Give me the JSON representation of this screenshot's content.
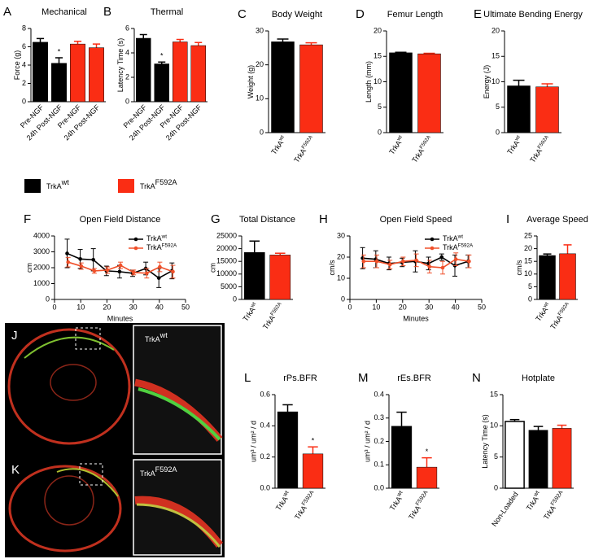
{
  "legend": [
    {
      "label": "TrkA",
      "superscript": "wt",
      "color": "#000000"
    },
    {
      "label": "TrkA",
      "superscript": "F592A",
      "color": "#fa2d14"
    }
  ],
  "images": [
    {
      "panel": "J",
      "label": "TrkA",
      "superscript": "wt"
    },
    {
      "panel": "K",
      "label": "TrkA",
      "superscript": "F592A"
    }
  ],
  "chart_data": [
    {
      "type": "bar",
      "panel": "A",
      "title": "Mechanical",
      "ylabel": "Force (g)",
      "categories": [
        "Pre-NGF",
        "24h Post-NGF",
        "Pre-NGF",
        "24h Post-NGF"
      ],
      "values": [
        6.5,
        4.2,
        6.3,
        5.9
      ],
      "errors": [
        0.4,
        0.6,
        0.3,
        0.4
      ],
      "significance": [
        null,
        "*",
        null,
        null
      ],
      "colors": [
        "#000000",
        "#000000",
        "#fa2d14",
        "#fa2d14"
      ],
      "ylim": [
        0,
        8
      ],
      "yticks": [
        0,
        2,
        4,
        6,
        8
      ]
    },
    {
      "type": "bar",
      "panel": "B",
      "title": "Thermal",
      "ylabel": "Latency Time (s)",
      "categories": [
        "Pre-NGF",
        "24h Post-NGF",
        "Pre-NGF",
        "24h Post-NGF"
      ],
      "values": [
        5.2,
        3.1,
        4.9,
        4.6
      ],
      "errors": [
        0.3,
        0.15,
        0.2,
        0.25
      ],
      "significance": [
        null,
        "*",
        null,
        null
      ],
      "colors": [
        "#000000",
        "#000000",
        "#fa2d14",
        "#fa2d14"
      ],
      "ylim": [
        0,
        6
      ],
      "yticks": [
        0,
        2,
        4,
        6
      ]
    },
    {
      "type": "bar",
      "panel": "C",
      "title": "Body Weight",
      "ylabel": "Weight (g)",
      "categories": [
        "TrkA",
        "TrkA"
      ],
      "category_superscripts": [
        "wt",
        "F592A"
      ],
      "values": [
        26.8,
        25.9
      ],
      "errors": [
        0.8,
        0.6
      ],
      "colors": [
        "#000000",
        "#fa2d14"
      ],
      "ylim": [
        0,
        30
      ],
      "yticks": [
        0,
        10,
        20,
        30
      ]
    },
    {
      "type": "bar",
      "panel": "D",
      "title": "Femur Length",
      "ylabel": "Length (mm)",
      "categories": [
        "TrkA",
        "TrkA"
      ],
      "category_superscripts": [
        "wt",
        "F592A"
      ],
      "values": [
        15.7,
        15.5
      ],
      "errors": [
        0.1,
        0.1
      ],
      "colors": [
        "#000000",
        "#fa2d14"
      ],
      "ylim": [
        0,
        20
      ],
      "yticks": [
        0,
        5,
        10,
        15,
        20
      ]
    },
    {
      "type": "bar",
      "panel": "E",
      "title": "Ultimate Bending Energy",
      "ylabel": "Energy (J)",
      "categories": [
        "TrkA",
        "TrkA"
      ],
      "category_superscripts": [
        "wt",
        "F592A"
      ],
      "values": [
        9.2,
        9.0
      ],
      "errors": [
        1.1,
        0.6
      ],
      "colors": [
        "#000000",
        "#fa2d14"
      ],
      "ylim": [
        0,
        20
      ],
      "yticks": [
        0,
        5,
        10,
        15,
        20
      ]
    },
    {
      "type": "line",
      "panel": "F",
      "title": "Open Field Distance",
      "ylabel": "cm",
      "xlabel": "Minutes",
      "x": [
        5,
        10,
        15,
        20,
        25,
        30,
        35,
        40,
        45
      ],
      "series": [
        {
          "name": "TrkA",
          "name_superscript": "wt",
          "color": "#000000",
          "values": [
            2900,
            2550,
            2500,
            1800,
            1750,
            1650,
            1950,
            1350,
            1800
          ],
          "errors": [
            900,
            600,
            700,
            300,
            400,
            200,
            400,
            600,
            500
          ]
        },
        {
          "name": "TrkA",
          "name_superscript": "F592A",
          "color": "#f0502a",
          "values": [
            2350,
            2100,
            1800,
            1850,
            2150,
            1700,
            1650,
            2050,
            1750
          ],
          "errors": [
            300,
            200,
            150,
            200,
            200,
            150,
            300,
            300,
            400
          ]
        }
      ],
      "xlim": [
        0,
        50
      ],
      "xticks": [
        0,
        10,
        20,
        30,
        40,
        50
      ],
      "ylim": [
        0,
        4000
      ],
      "yticks": [
        0,
        1000,
        2000,
        3000,
        4000
      ]
    },
    {
      "type": "bar",
      "panel": "G",
      "title": "Total Distance",
      "ylabel": "cm",
      "categories": [
        "TrkA",
        "TrkA"
      ],
      "category_superscripts": [
        "wt",
        "F592A"
      ],
      "values": [
        18500,
        17500
      ],
      "errors": [
        4500,
        700
      ],
      "colors": [
        "#000000",
        "#fa2d14"
      ],
      "ylim": [
        0,
        25000
      ],
      "yticks": [
        0,
        5000,
        10000,
        15000,
        20000,
        25000
      ]
    },
    {
      "type": "line",
      "panel": "H",
      "title": "Open Field Speed",
      "ylabel": "cm/s",
      "xlabel": "Minutes",
      "x": [
        5,
        10,
        15,
        20,
        25,
        30,
        35,
        40,
        45
      ],
      "series": [
        {
          "name": "TrkA",
          "name_superscript": "wt",
          "color": "#000000",
          "values": [
            19.5,
            19,
            17,
            17.5,
            18,
            17,
            20,
            16,
            18
          ],
          "errors": [
            5,
            4,
            3,
            2,
            5,
            3,
            1.5,
            5,
            3
          ]
        },
        {
          "name": "TrkA",
          "name_superscript": "F592A",
          "color": "#f0502a",
          "values": [
            18,
            18,
            16.5,
            18,
            18.5,
            15.5,
            15,
            19,
            18
          ],
          "errors": [
            3,
            3,
            2,
            2,
            3,
            3,
            3,
            3,
            3
          ]
        }
      ],
      "xlim": [
        0,
        50
      ],
      "xticks": [
        0,
        10,
        20,
        30,
        40,
        50
      ],
      "ylim": [
        0,
        30
      ],
      "yticks": [
        0,
        10,
        20,
        30
      ]
    },
    {
      "type": "bar",
      "panel": "I",
      "title": "Average Speed",
      "ylabel": "cm/s",
      "categories": [
        "TrkA",
        "TrkA"
      ],
      "category_superscripts": [
        "wt",
        "F592A"
      ],
      "values": [
        17.3,
        18
      ],
      "errors": [
        0.6,
        3.5
      ],
      "colors": [
        "#000000",
        "#fa2d14"
      ],
      "ylim": [
        0,
        25
      ],
      "yticks": [
        0,
        5,
        10,
        15,
        20,
        25
      ]
    },
    {
      "type": "bar",
      "panel": "L",
      "title": "rPs.BFR",
      "ylabel": "um³ / um² / d",
      "categories": [
        "TrkA",
        "TrkA"
      ],
      "category_superscripts": [
        "wt",
        "F592A"
      ],
      "values": [
        0.49,
        0.22
      ],
      "errors": [
        0.045,
        0.045
      ],
      "significance": [
        null,
        "*"
      ],
      "colors": [
        "#000000",
        "#fa2d14"
      ],
      "ylim": [
        0,
        0.6
      ],
      "yticks": [
        {
          "value": 0,
          "label": "0.0"
        },
        0.2,
        0.4,
        0.6
      ]
    },
    {
      "type": "bar",
      "panel": "M",
      "title": "rEs.BFR",
      "ylabel": "um³ / um² / d",
      "categories": [
        "TrkA",
        "TrkA"
      ],
      "category_superscripts": [
        "wt",
        "F592A"
      ],
      "values": [
        0.265,
        0.09
      ],
      "errors": [
        0.06,
        0.04
      ],
      "significance": [
        null,
        "*"
      ],
      "colors": [
        "#000000",
        "#fa2d14"
      ],
      "ylim": [
        0,
        0.4
      ],
      "yticks": [
        {
          "value": 0,
          "label": "0.0"
        },
        0.1,
        0.2,
        0.3,
        0.4
      ]
    },
    {
      "type": "bar",
      "panel": "N",
      "title": "Hotplate",
      "ylabel": "Latency Time (s)",
      "categories": [
        "Non-Loaded",
        "TrkA",
        "TrkA"
      ],
      "category_superscripts": [
        null,
        "wt",
        "F592A"
      ],
      "values": [
        10.7,
        9.3,
        9.6
      ],
      "errors": [
        0.3,
        0.6,
        0.5
      ],
      "colors": [
        "#ffffff",
        "#000000",
        "#fa2d14"
      ],
      "ylim": [
        0,
        15
      ],
      "yticks": [
        0,
        5,
        10,
        15
      ]
    }
  ]
}
